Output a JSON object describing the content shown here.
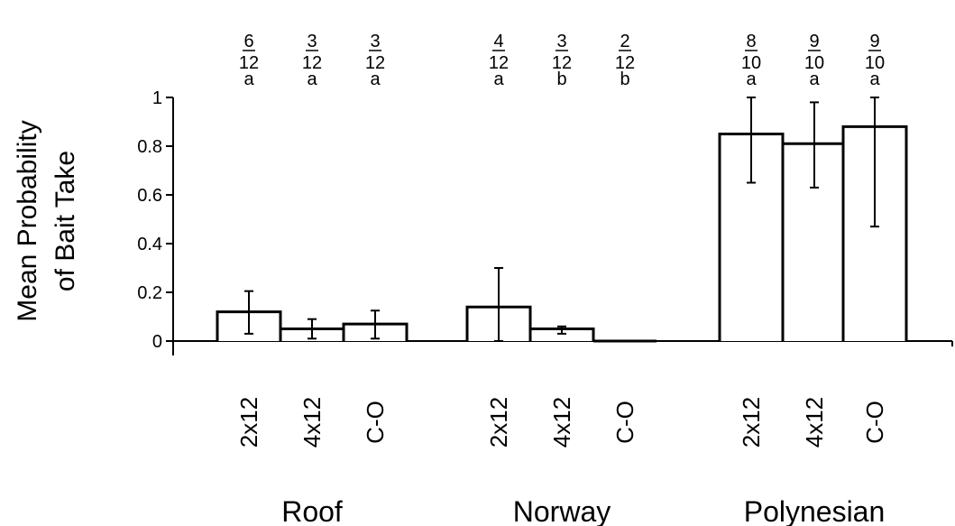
{
  "chart_data": {
    "type": "bar",
    "title": "",
    "ylabel_lines": [
      "Mean Probability",
      "of Bait Take"
    ],
    "xlabel": "",
    "ylim": [
      0,
      1
    ],
    "yticks": [
      "0",
      "0.2",
      "0.4",
      "0.6",
      "0.8",
      "1"
    ],
    "grid": false,
    "bar_fill": "#ffffff",
    "bar_stroke": "#000000",
    "groups": [
      {
        "name": "Roof",
        "bars": [
          {
            "label": "2x12",
            "value": 0.12,
            "err_low": 0.03,
            "err_high": 0.205,
            "num": "6",
            "den": "12",
            "letter": "a"
          },
          {
            "label": "4x12",
            "value": 0.05,
            "err_low": 0.01,
            "err_high": 0.09,
            "num": "3",
            "den": "12",
            "letter": "a"
          },
          {
            "label": "C-O",
            "value": 0.07,
            "err_low": 0.01,
            "err_high": 0.125,
            "num": "3",
            "den": "12",
            "letter": "a"
          }
        ]
      },
      {
        "name": "Norway",
        "bars": [
          {
            "label": "2x12",
            "value": 0.14,
            "err_low": 0.0,
            "err_high": 0.3,
            "num": "4",
            "den": "12",
            "letter": "a"
          },
          {
            "label": "4x12",
            "value": 0.05,
            "err_low": 0.03,
            "err_high": 0.06,
            "num": "3",
            "den": "12",
            "letter": "b"
          },
          {
            "label": "C-O",
            "value": 0.0,
            "err_low": null,
            "err_high": null,
            "num": "2",
            "den": "12",
            "letter": "b"
          }
        ]
      },
      {
        "name": "Polynesian",
        "bars": [
          {
            "label": "2x12",
            "value": 0.85,
            "err_low": 0.65,
            "err_high": 1.0,
            "num": "8",
            "den": "10",
            "letter": "a"
          },
          {
            "label": "4x12",
            "value": 0.81,
            "err_low": 0.63,
            "err_high": 0.98,
            "num": "9",
            "den": "10",
            "letter": "a"
          },
          {
            "label": "C-O",
            "value": 0.88,
            "err_low": 0.47,
            "err_high": 1.0,
            "num": "9",
            "den": "10",
            "letter": "a"
          }
        ]
      }
    ]
  }
}
